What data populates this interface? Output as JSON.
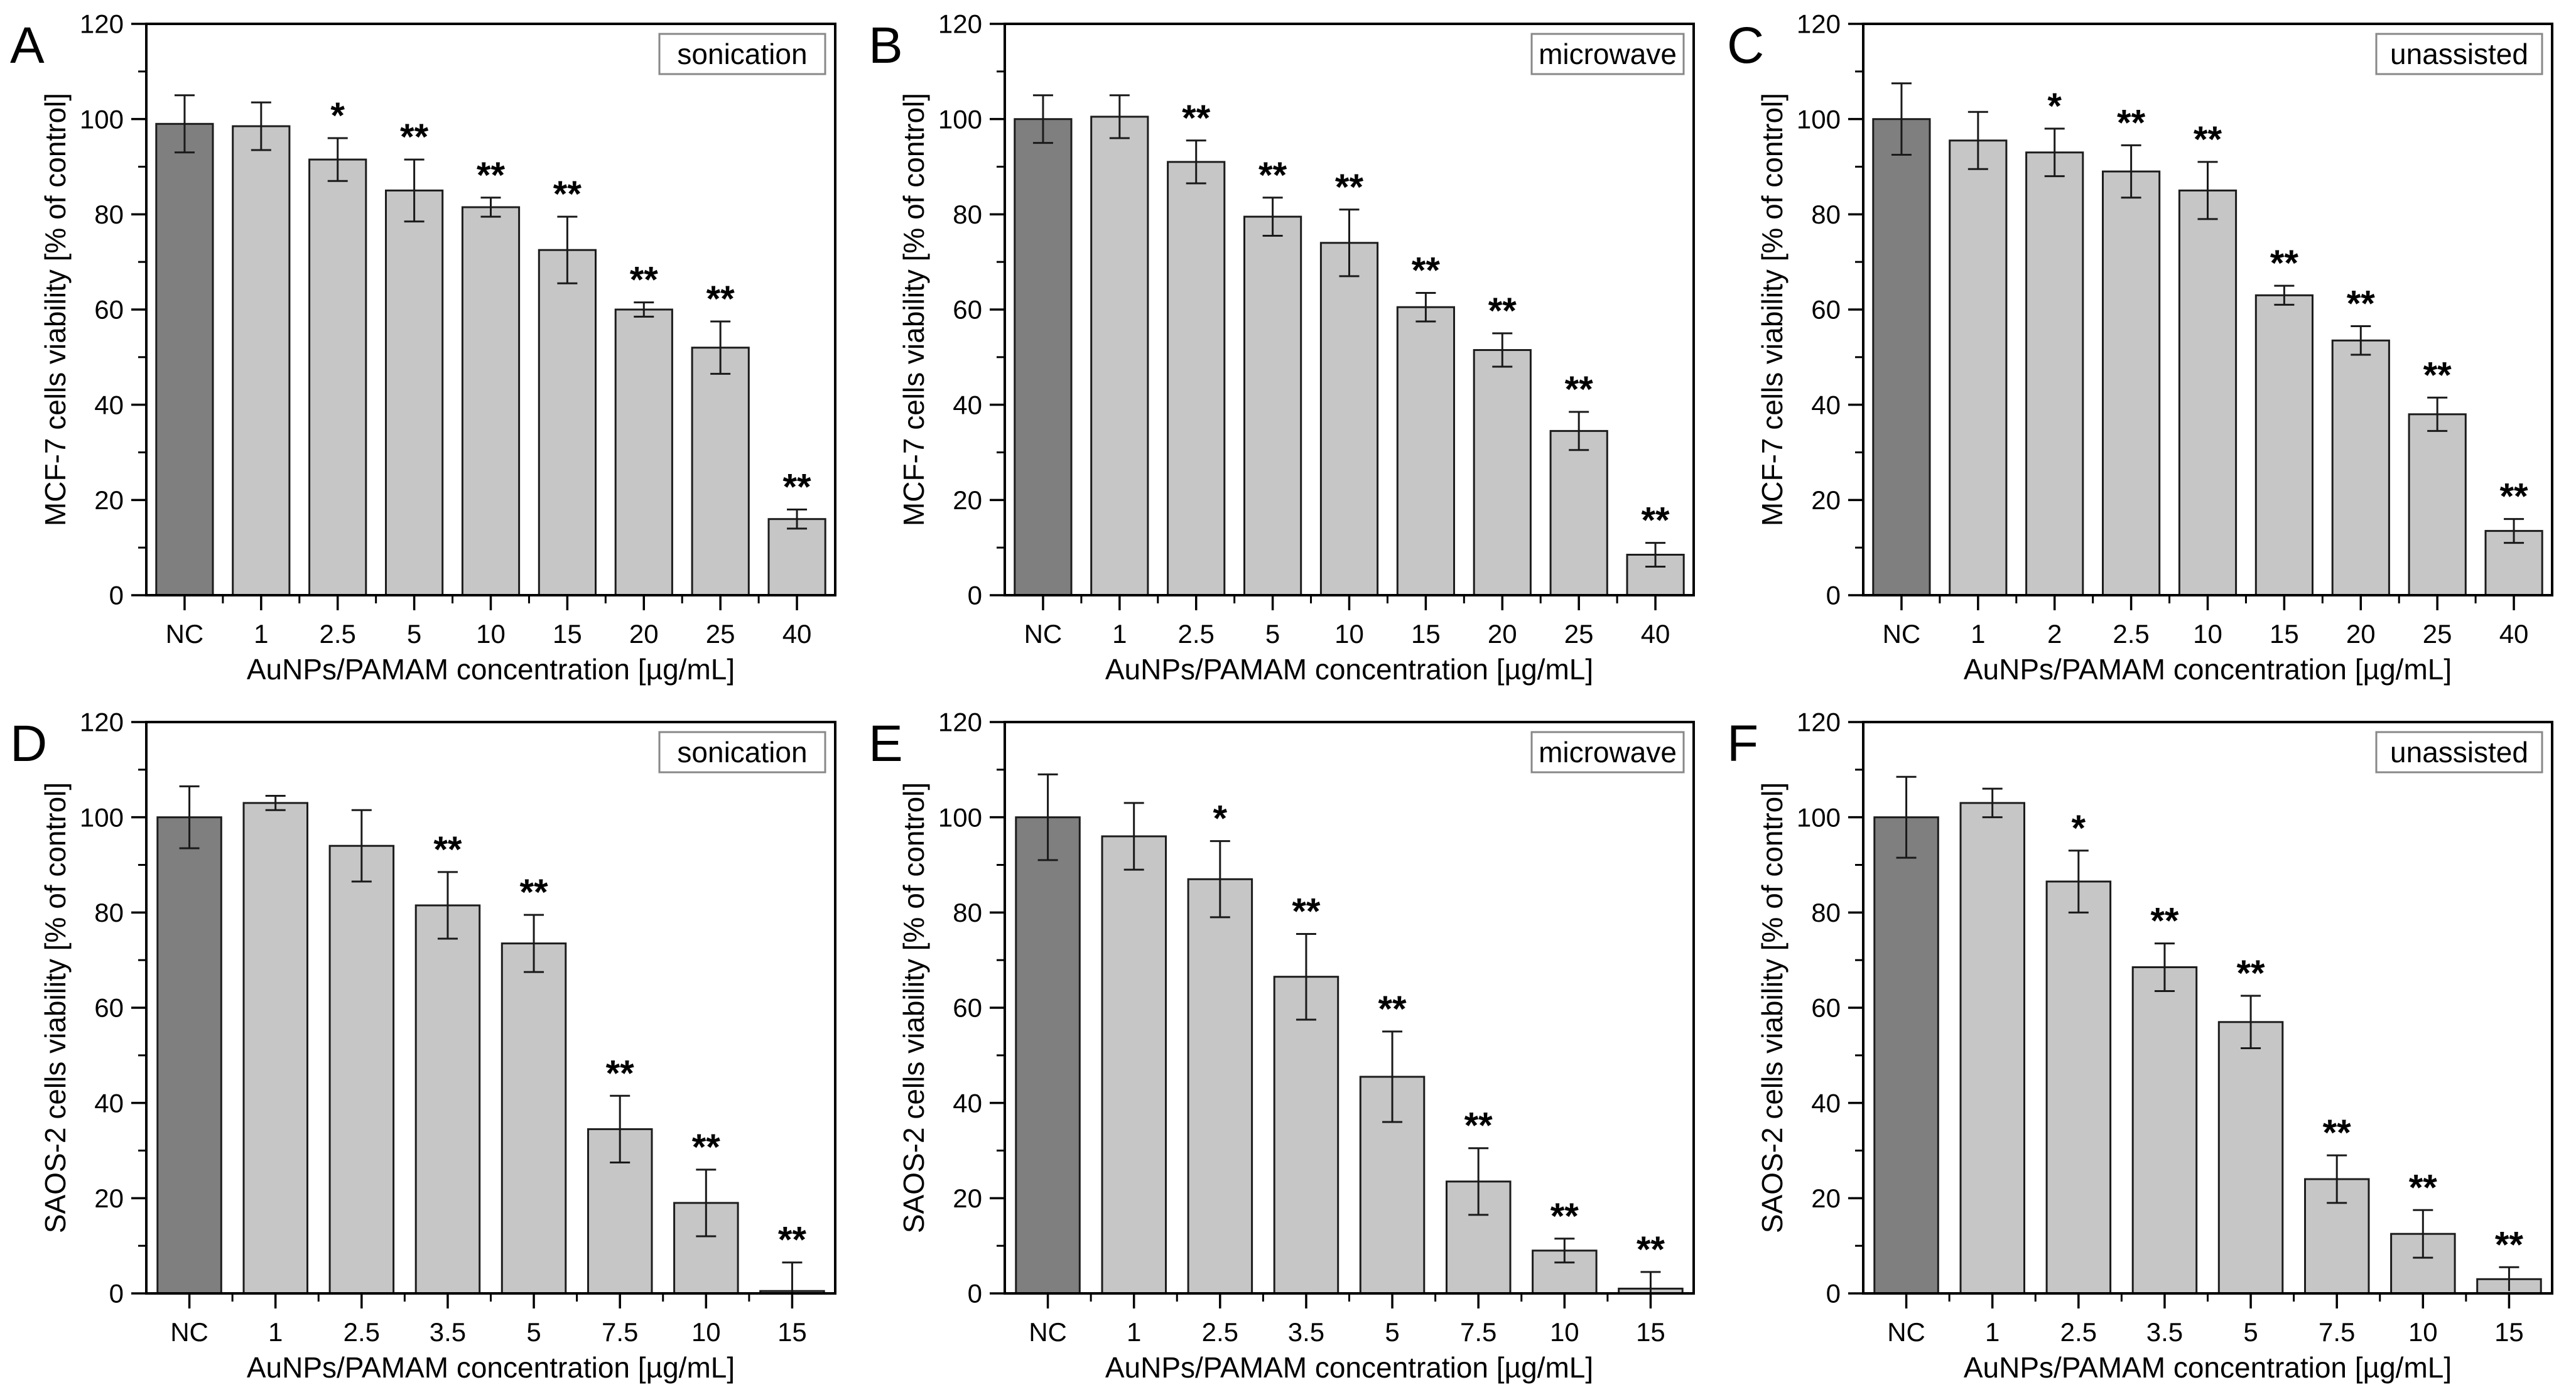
{
  "figure": {
    "background": "#ffffff",
    "rows": 2,
    "cols": 3
  },
  "colors": {
    "nc_bar_fill": "#7f7f7f",
    "bar_fill": "#c6c6c6",
    "bar_stroke": "#1c1c1c",
    "axis_color": "#000000",
    "error_bar_color": "#1a1a1a",
    "legend_border": "#888888",
    "legend_fill": "#ffffff",
    "text_color": "#000000"
  },
  "chart_data": [
    {
      "type": "bar",
      "panel_label": "A",
      "legend": "sonication",
      "legend_position": "top-right",
      "grid": false,
      "xlabel": "AuNPs/PAMAM concentration [µg/mL]",
      "ylabel": "MCF-7 cells viability [% of control]",
      "ylim": [
        0,
        120
      ],
      "yticks": [
        0,
        20,
        40,
        60,
        80,
        100,
        120
      ],
      "y_minor_step": 10,
      "categories": [
        "NC",
        "1",
        "2.5",
        "5",
        "10",
        "15",
        "20",
        "25",
        "40"
      ],
      "values": [
        99,
        98.5,
        91.5,
        85,
        81.5,
        72.5,
        60,
        52,
        16
      ],
      "errors": [
        6,
        5,
        4.5,
        6.5,
        2,
        7,
        1.5,
        5.5,
        2
      ],
      "significance": [
        "",
        "",
        "*",
        "**",
        "**",
        "**",
        "**",
        "**",
        "**"
      ]
    },
    {
      "type": "bar",
      "panel_label": "B",
      "legend": "microwave",
      "legend_position": "top-right",
      "grid": false,
      "xlabel": "AuNPs/PAMAM concentration [µg/mL]",
      "ylabel": "MCF-7 cells viability [% of control]",
      "ylim": [
        0,
        120
      ],
      "yticks": [
        0,
        20,
        40,
        60,
        80,
        100,
        120
      ],
      "y_minor_step": 10,
      "categories": [
        "NC",
        "1",
        "2.5",
        "5",
        "10",
        "15",
        "20",
        "25",
        "40"
      ],
      "values": [
        100,
        100.5,
        91,
        79.5,
        74,
        60.5,
        51.5,
        34.5,
        8.5
      ],
      "errors": [
        5,
        4.5,
        4.5,
        4,
        7,
        3,
        3.5,
        4,
        2.5
      ],
      "significance": [
        "",
        "",
        "**",
        "**",
        "**",
        "**",
        "**",
        "**",
        "**"
      ]
    },
    {
      "type": "bar",
      "panel_label": "C",
      "legend": "unassisted",
      "legend_position": "top-right",
      "grid": false,
      "xlabel": "AuNPs/PAMAM concentration [µg/mL]",
      "ylabel": "MCF-7 cells viability [% of control]",
      "ylim": [
        0,
        120
      ],
      "yticks": [
        0,
        20,
        40,
        60,
        80,
        100,
        120
      ],
      "y_minor_step": 10,
      "categories": [
        "NC",
        "1",
        "2",
        "2.5",
        "10",
        "15",
        "20",
        "25",
        "40"
      ],
      "values": [
        100,
        95.5,
        93,
        89,
        85,
        63,
        53.5,
        38,
        13.5
      ],
      "errors": [
        7.5,
        6,
        5,
        5.5,
        6,
        2,
        3,
        3.5,
        2.5
      ],
      "significance": [
        "",
        "",
        "*",
        "**",
        "**",
        "**",
        "**",
        "**",
        "**"
      ]
    },
    {
      "type": "bar",
      "panel_label": "D",
      "legend": "sonication",
      "legend_position": "top-right",
      "grid": false,
      "xlabel": "AuNPs/PAMAM concentration [µg/mL]",
      "ylabel": "SAOS-2 cells viability [% of control]",
      "ylim": [
        0,
        120
      ],
      "yticks": [
        0,
        20,
        40,
        60,
        80,
        100,
        120
      ],
      "y_minor_step": 10,
      "categories": [
        "NC",
        "1",
        "2.5",
        "3.5",
        "5",
        "7.5",
        "10",
        "15"
      ],
      "values": [
        100,
        103,
        94,
        81.5,
        73.5,
        34.5,
        19,
        0.5
      ],
      "errors": [
        6.5,
        1.5,
        7.5,
        7,
        6,
        7,
        7,
        6
      ],
      "significance": [
        "",
        "",
        "",
        "**",
        "**",
        "**",
        "**",
        "**"
      ]
    },
    {
      "type": "bar",
      "panel_label": "E",
      "legend": "microwave",
      "legend_position": "top-right",
      "grid": false,
      "xlabel": "AuNPs/PAMAM concentration [µg/mL]",
      "ylabel": "SAOS-2 cells viability [% of control]",
      "ylim": [
        0,
        120
      ],
      "yticks": [
        0,
        20,
        40,
        60,
        80,
        100,
        120
      ],
      "y_minor_step": 10,
      "categories": [
        "NC",
        "1",
        "2.5",
        "3.5",
        "5",
        "7.5",
        "10",
        "15"
      ],
      "values": [
        100,
        96,
        87,
        66.5,
        45.5,
        23.5,
        9,
        1
      ],
      "errors": [
        9,
        7,
        8,
        9,
        9.5,
        7,
        2.5,
        3.5
      ],
      "significance": [
        "",
        "",
        "*",
        "**",
        "**",
        "**",
        "**",
        "**"
      ]
    },
    {
      "type": "bar",
      "panel_label": "F",
      "legend": "unassisted",
      "legend_position": "top-right",
      "grid": false,
      "xlabel": "AuNPs/PAMAM concentration [µg/mL]",
      "ylabel": "SAOS-2 cells viability [% of control]",
      "ylim": [
        0,
        120
      ],
      "yticks": [
        0,
        20,
        40,
        60,
        80,
        100,
        120
      ],
      "y_minor_step": 10,
      "categories": [
        "NC",
        "1",
        "2.5",
        "3.5",
        "5",
        "7.5",
        "10",
        "15"
      ],
      "values": [
        100,
        103,
        86.5,
        68.5,
        57,
        24,
        12.5,
        3
      ],
      "errors": [
        8.5,
        3,
        6.5,
        5,
        5.5,
        5,
        5,
        2.5
      ],
      "significance": [
        "",
        "",
        "*",
        "**",
        "**",
        "**",
        "**",
        "**"
      ]
    }
  ]
}
